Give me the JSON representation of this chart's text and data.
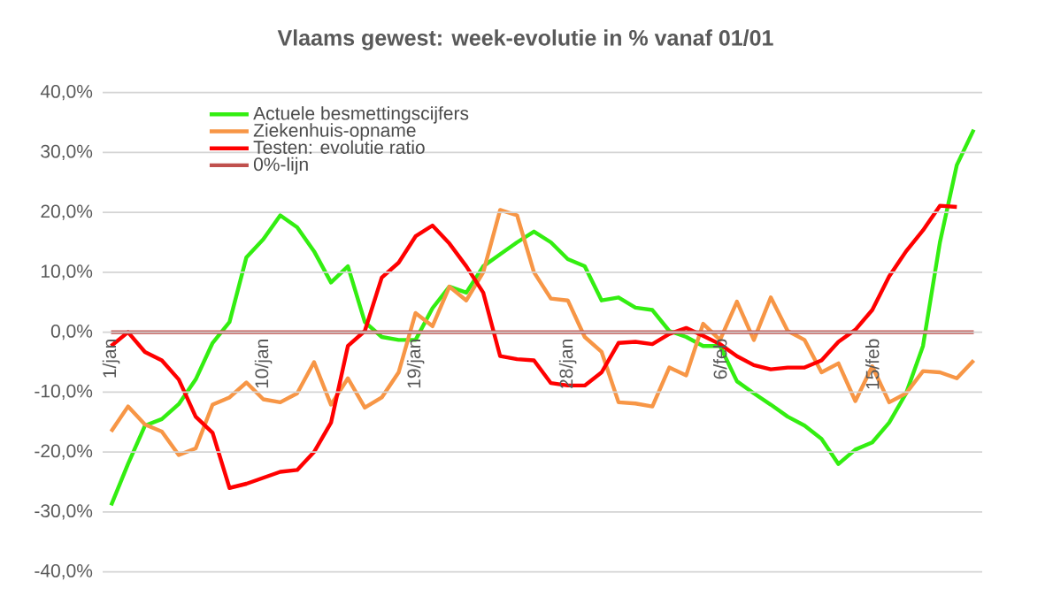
{
  "chart_data": {
    "type": "line",
    "title": "Vlaams gewest:  week-evolutie in %  vanaf 01/01",
    "categories": [
      "1/jan",
      null,
      null,
      null,
      null,
      null,
      null,
      null,
      null,
      "10/jan",
      null,
      null,
      null,
      null,
      null,
      null,
      null,
      null,
      "19/jan",
      null,
      null,
      null,
      null,
      null,
      null,
      null,
      null,
      "28/jan",
      null,
      null,
      null,
      null,
      null,
      null,
      null,
      null,
      "6/feb",
      null,
      null,
      null,
      null,
      null,
      null,
      null,
      null,
      "15/feb",
      null,
      null,
      null,
      null,
      null,
      null
    ],
    "series": [
      {
        "name": "Actuele besmettingscijfers",
        "color": "#33ee11",
        "values": [
          -28.9,
          -22,
          -15.6,
          -14.5,
          -12,
          -7.9,
          -1.8,
          1.7,
          12.5,
          15.5,
          19.5,
          17.5,
          13.5,
          8.3,
          11,
          1.7,
          -0.8,
          -1.3,
          -1.3,
          4,
          7.6,
          6.6,
          11,
          13,
          15,
          16.8,
          15,
          12.2,
          11,
          5.3,
          5.8,
          4.1,
          3.7,
          0.2,
          -0.8,
          -2.3,
          -2.3,
          -8.2,
          -10.2,
          -12.1,
          -14.1,
          -15.6,
          -17.8,
          -22,
          -19.6,
          -18.4,
          -15.1,
          -10.2,
          -2.3,
          15,
          27.9,
          33.8
        ]
      },
      {
        "name": "Ziekenhuis-opname",
        "color": "#f79646",
        "values": [
          -16.6,
          -12.4,
          -15.4,
          -16.6,
          -20.5,
          -19.4,
          -12.1,
          -10.9,
          -8.4,
          -11.2,
          -11.7,
          -10.2,
          -5,
          -12.1,
          -7.7,
          -12.6,
          -10.9,
          -6.7,
          3.2,
          1,
          7.6,
          5.3,
          10,
          20.4,
          19.5,
          10,
          5.6,
          5.3,
          -0.8,
          -3.3,
          -11.7,
          -11.9,
          -12.4,
          -5.9,
          -7.2,
          1.4,
          -1.3,
          5.1,
          -1.3,
          5.8,
          0.2,
          -1.3,
          -6.7,
          -5.2,
          -11.5,
          -5.7,
          -11.7,
          -10.2,
          -6.5,
          -6.7,
          -7.7,
          -4.7
        ]
      },
      {
        "name": "Testen: evolutie ratio",
        "color": "#ff0000",
        "values": [
          -2.3,
          0,
          -3.3,
          -4.7,
          -7.9,
          -14.1,
          -16.8,
          -26,
          -25.3,
          -24.3,
          -23.3,
          -23,
          -20,
          -15.1,
          -2.3,
          0.2,
          9.1,
          11.6,
          16,
          17.8,
          14.8,
          11,
          6.6,
          -4,
          -4.5,
          -4.7,
          -8.5,
          -8.9,
          -8.9,
          -6.7,
          -1.8,
          -1.6,
          -2,
          -0.3,
          0.7,
          -0.6,
          -2,
          -4,
          -5.5,
          -6.2,
          -5.9,
          -5.9,
          -4.7,
          -1.6,
          0.4,
          3.7,
          9.3,
          13.5,
          17,
          21.1,
          20.9,
          null
        ]
      },
      {
        "name": "0%-lijn",
        "color": "#c0504d",
        "values": [
          0,
          0,
          0,
          0,
          0,
          0,
          0,
          0,
          0,
          0,
          0,
          0,
          0,
          0,
          0,
          0,
          0,
          0,
          0,
          0,
          0,
          0,
          0,
          0,
          0,
          0,
          0,
          0,
          0,
          0,
          0,
          0,
          0,
          0,
          0,
          0,
          0,
          0,
          0,
          0,
          0,
          0,
          0,
          0,
          0,
          0,
          0,
          0,
          0,
          0,
          0,
          0
        ]
      }
    ],
    "ylim": [
      -40,
      40
    ],
    "yticks": [
      {
        "value": -40,
        "label": "-40,0%"
      },
      {
        "value": -30,
        "label": "-30,0%"
      },
      {
        "value": -20,
        "label": "-20,0%"
      },
      {
        "value": -10,
        "label": "-10,0%"
      },
      {
        "value": 0,
        "label": "0,0%"
      },
      {
        "value": 10,
        "label": "10,0%"
      },
      {
        "value": 20,
        "label": "20,0%"
      },
      {
        "value": 30,
        "label": "30,0%"
      },
      {
        "value": 40,
        "label": "40,0%"
      }
    ],
    "grid": "y",
    "legend": "top left"
  }
}
